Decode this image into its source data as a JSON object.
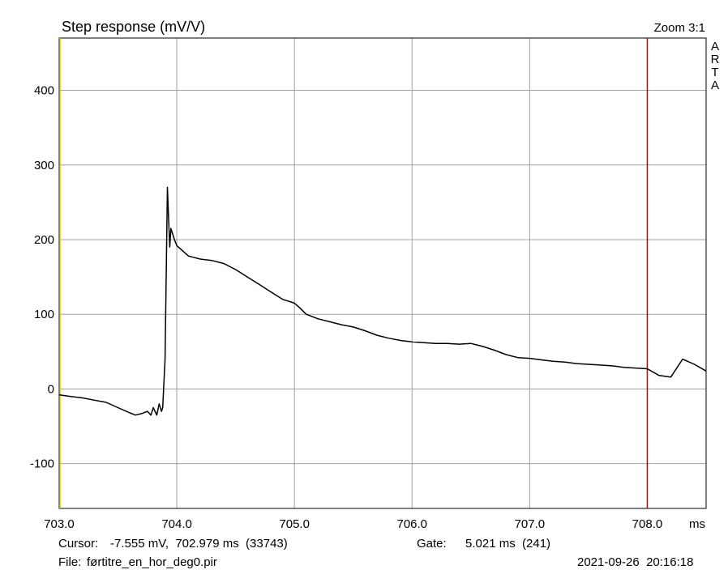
{
  "title": "Step response (mV/V)",
  "zoom_label": "Zoom 3:1",
  "brand_letters": [
    "A",
    "R",
    "T",
    "A"
  ],
  "footer": {
    "cursor_label": "Cursor:",
    "cursor_value": "-7.555 mV,  702.979 ms  (33743)",
    "gate_label": "Gate:",
    "gate_value": "5.021 ms  (241)",
    "file_label": "File:",
    "file_name": "førtitre_en_hor_deg0.pir",
    "datetime": "2021-09-26  20:16:18"
  },
  "colors": {
    "background": "#ffffff",
    "grid": "#a0a0a0",
    "trace": "#000000",
    "marker": "#8b1a1a",
    "cursor": "#d4c800"
  },
  "chart_data": {
    "type": "line",
    "title": "Step response (mV/V)",
    "xlabel": "ms",
    "ylabel": "",
    "xlim": [
      703.0,
      708.5
    ],
    "ylim": [
      -160,
      470
    ],
    "xticks": [
      703.0,
      704.0,
      705.0,
      706.0,
      707.0,
      708.0
    ],
    "xtick_labels": [
      "703.0",
      "704.0",
      "705.0",
      "706.0",
      "707.0",
      "708.0"
    ],
    "yticks": [
      -100,
      0,
      100,
      200,
      300,
      400
    ],
    "ytick_labels": [
      "-100",
      "0",
      "100",
      "200",
      "300",
      "400"
    ],
    "grid": true,
    "cursor_x": 702.979,
    "marker_x": 708.0,
    "series": [
      {
        "x": [
          703.0,
          703.1,
          703.2,
          703.3,
          703.4,
          703.5,
          703.6,
          703.65,
          703.7,
          703.75,
          703.78,
          703.8,
          703.83,
          703.85,
          703.87,
          703.88,
          703.9,
          703.91,
          703.92,
          703.93,
          703.94,
          703.95,
          703.97,
          703.98,
          704.0,
          704.05,
          704.1,
          704.2,
          704.3,
          704.4,
          704.5,
          704.6,
          704.7,
          704.8,
          704.9,
          705.0,
          705.05,
          705.1,
          705.2,
          705.3,
          705.4,
          705.5,
          705.6,
          705.7,
          705.8,
          705.9,
          706.0,
          706.1,
          706.2,
          706.3,
          706.4,
          706.5,
          706.6,
          706.7,
          706.8,
          706.9,
          707.0,
          707.1,
          707.2,
          707.3,
          707.4,
          707.5,
          707.6,
          707.7,
          707.8,
          707.9,
          708.0,
          708.1,
          708.2,
          708.3,
          708.4,
          708.5
        ],
        "y": [
          -8,
          -10,
          -12,
          -15,
          -18,
          -25,
          -32,
          -35,
          -33,
          -30,
          -35,
          -25,
          -35,
          -20,
          -30,
          -25,
          40,
          150,
          270,
          230,
          190,
          215,
          205,
          200,
          192,
          185,
          178,
          174,
          172,
          168,
          160,
          150,
          140,
          130,
          120,
          115,
          108,
          100,
          94,
          90,
          86,
          83,
          78,
          72,
          68,
          65,
          63,
          62,
          61,
          61,
          60,
          61,
          57,
          52,
          46,
          42,
          41,
          39,
          37,
          36,
          34,
          33,
          32,
          31,
          29,
          28,
          27,
          18,
          16,
          40,
          33,
          24
        ]
      }
    ]
  }
}
